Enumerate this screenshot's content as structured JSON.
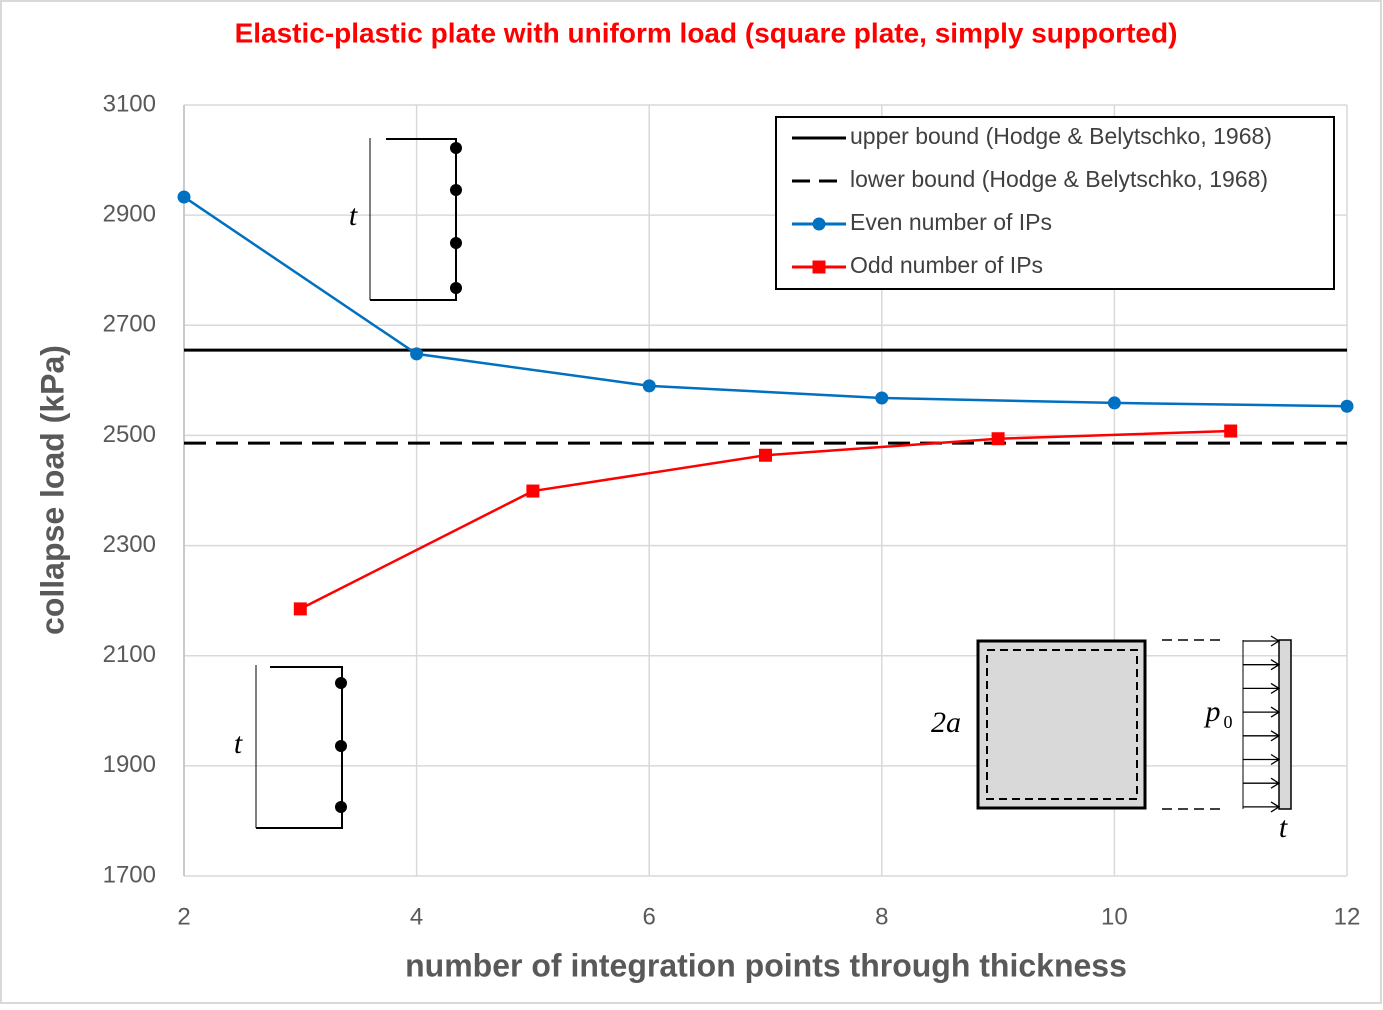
{
  "chart_data": {
    "type": "line",
    "title": "Elastic-plastic plate with uniform load (square plate, simply supported)",
    "x_label": "number of integration points through thickness",
    "y_label": "collapse load (kPa)",
    "xlim": [
      2,
      12
    ],
    "xticks": [
      2,
      4,
      6,
      8,
      10,
      12
    ],
    "ylim": [
      1700,
      3100
    ],
    "yticks": [
      1700,
      1900,
      2100,
      2300,
      2500,
      2700,
      2900,
      3100
    ],
    "grid": true,
    "legend": "upper right",
    "bounds": [
      {
        "name": "upper bound (Hodge & Belytschko, 1968)",
        "color": "#000000",
        "style": "solid",
        "value": 2655
      },
      {
        "name": "lower bound (Hodge & Belytschko, 1968)",
        "color": "#000000",
        "style": "dashed",
        "value": 2486
      }
    ],
    "series": [
      {
        "name": "Even number of IPs",
        "color": "#0070c0",
        "marker": "circle",
        "x": [
          2,
          4,
          6,
          8,
          10,
          12
        ],
        "values": [
          2933,
          2648,
          2590,
          2568,
          2559,
          2553
        ]
      },
      {
        "name": "Odd number of IPs",
        "color": "#ff0000",
        "marker": "square",
        "x": [
          3,
          5,
          7,
          9,
          11
        ],
        "values": [
          2185,
          2399,
          2464,
          2494,
          2508
        ]
      }
    ],
    "annotations": [
      "t",
      "t",
      "2a",
      "p",
      "0",
      "t"
    ]
  }
}
